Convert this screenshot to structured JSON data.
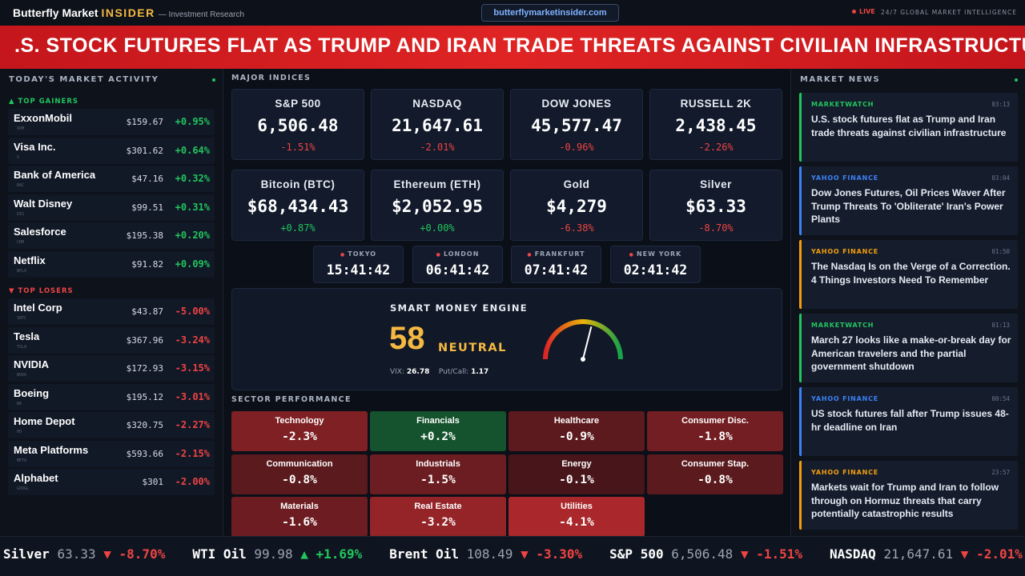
{
  "header": {
    "brand_main": "Butterfly Market ",
    "brand_accent": "INSIDER",
    "brand_sub": "— Investment Research",
    "url": "butterflymarketinsider.com",
    "live_label": "LIVE",
    "tagline": "24/7 GLOBAL MARKET INTELLIGENCE"
  },
  "headline": ".S. STOCK FUTURES FLAT AS TRUMP AND IRAN TRADE THREATS AGAINST CIVILIAN INFRASTRUCTU",
  "market_activity": {
    "title": "TODAY'S MARKET ACTIVITY",
    "gainers_label": "▲ TOP GAINERS",
    "losers_label": "▼ TOP LOSERS",
    "gainers": [
      {
        "name": "ExxonMobil",
        "ticker": "XOM",
        "price": "$159.67",
        "change": "+0.95%"
      },
      {
        "name": "Visa Inc.",
        "ticker": "V",
        "price": "$301.62",
        "change": "+0.64%"
      },
      {
        "name": "Bank of America",
        "ticker": "BAC",
        "price": "$47.16",
        "change": "+0.32%"
      },
      {
        "name": "Walt Disney",
        "ticker": "DIS",
        "price": "$99.51",
        "change": "+0.31%"
      },
      {
        "name": "Salesforce",
        "ticker": "CRM",
        "price": "$195.38",
        "change": "+0.20%"
      },
      {
        "name": "Netflix",
        "ticker": "NFLX",
        "price": "$91.82",
        "change": "+0.09%"
      }
    ],
    "losers": [
      {
        "name": "Intel Corp",
        "ticker": "INTC",
        "price": "$43.87",
        "change": "-5.00%"
      },
      {
        "name": "Tesla",
        "ticker": "TSLA",
        "price": "$367.96",
        "change": "-3.24%"
      },
      {
        "name": "NVIDIA",
        "ticker": "NVDA",
        "price": "$172.93",
        "change": "-3.15%"
      },
      {
        "name": "Boeing",
        "ticker": "BA",
        "price": "$195.12",
        "change": "-3.01%"
      },
      {
        "name": "Home Depot",
        "ticker": "HD",
        "price": "$320.75",
        "change": "-2.27%"
      },
      {
        "name": "Meta Platforms",
        "ticker": "META",
        "price": "$593.66",
        "change": "-2.15%"
      },
      {
        "name": "Alphabet",
        "ticker": "GOOGL",
        "price": "$301",
        "change": "-2.00%"
      }
    ]
  },
  "indices": {
    "title": "MAJOR INDICES",
    "items": [
      {
        "name": "S&P 500",
        "value": "6,506.48",
        "change": "-1.51%",
        "dir": "down"
      },
      {
        "name": "NASDAQ",
        "value": "21,647.61",
        "change": "-2.01%",
        "dir": "down"
      },
      {
        "name": "DOW JONES",
        "value": "45,577.47",
        "change": "-0.96%",
        "dir": "down"
      },
      {
        "name": "RUSSELL 2K",
        "value": "2,438.45",
        "change": "-2.26%",
        "dir": "down"
      },
      {
        "name": "Bitcoin (BTC)",
        "value": "$68,434.43",
        "change": "+0.87%",
        "dir": "up"
      },
      {
        "name": "Ethereum (ETH)",
        "value": "$2,052.95",
        "change": "+0.00%",
        "dir": "up"
      },
      {
        "name": "Gold",
        "value": "$4,279",
        "change": "-6.38%",
        "dir": "down"
      },
      {
        "name": "Silver",
        "value": "$63.33",
        "change": "-8.70%",
        "dir": "down"
      }
    ]
  },
  "clocks": [
    {
      "city": "TOKYO",
      "time": "15:41:42"
    },
    {
      "city": "LONDON",
      "time": "06:41:42"
    },
    {
      "city": "FRANKFURT",
      "time": "07:41:42"
    },
    {
      "city": "NEW YORK",
      "time": "02:41:42"
    }
  ],
  "smart_money": {
    "title": "SMART MONEY ENGINE",
    "score": "58",
    "score_value": 58,
    "label": "NEUTRAL",
    "vix_label": "VIX:",
    "vix": "26.78",
    "putcall_label": "Put/Call:",
    "putcall": "1.17",
    "accent_color": "#f5b942"
  },
  "sectors": {
    "title": "SECTOR PERFORMANCE",
    "items": [
      {
        "name": "Technology",
        "change": "-2.3%",
        "value": -2.3
      },
      {
        "name": "Financials",
        "change": "+0.2%",
        "value": 0.2
      },
      {
        "name": "Healthcare",
        "change": "-0.9%",
        "value": -0.9
      },
      {
        "name": "Consumer Disc.",
        "change": "-1.8%",
        "value": -1.8
      },
      {
        "name": "Communication",
        "change": "-0.8%",
        "value": -0.8
      },
      {
        "name": "Industrials",
        "change": "-1.5%",
        "value": -1.5
      },
      {
        "name": "Energy",
        "change": "-0.1%",
        "value": -0.1
      },
      {
        "name": "Consumer Stap.",
        "change": "-0.8%",
        "value": -0.8
      },
      {
        "name": "Materials",
        "change": "-1.6%",
        "value": -1.6
      },
      {
        "name": "Real Estate",
        "change": "-3.2%",
        "value": -3.2
      },
      {
        "name": "Utilities",
        "change": "-4.1%",
        "value": -4.1
      }
    ]
  },
  "news": {
    "title": "MARKET NEWS",
    "items": [
      {
        "source": "MARKETWATCH",
        "time": "03:13",
        "headline": "U.S. stock futures flat as Trump and Iran trade threats against civilian infrastructure",
        "color": "#22c55e"
      },
      {
        "source": "YAHOO FINANCE",
        "time": "03:04",
        "headline": "Dow Jones Futures, Oil Prices Waver After Trump Threats To 'Obliterate' Iran's Power Plants",
        "color": "#3b82f6"
      },
      {
        "source": "YAHOO FINANCE",
        "time": "01:50",
        "headline": "The Nasdaq Is on the Verge of a Correction. 4 Things Investors Need To Remember",
        "color": "#f59e0b"
      },
      {
        "source": "MARKETWATCH",
        "time": "01:13",
        "headline": "March 27 looks like a make-or-break day for American travelers and the partial government shutdown",
        "color": "#22c55e"
      },
      {
        "source": "YAHOO FINANCE",
        "time": "00:54",
        "headline": "US stock futures fall after Trump issues 48-hr deadline on Iran",
        "color": "#3b82f6"
      },
      {
        "source": "YAHOO FINANCE",
        "time": "23:57",
        "headline": "Markets wait for Trump and Iran to follow through on Hormuz threats that carry potentially catastrophic results",
        "color": "#f59e0b"
      }
    ]
  },
  "ticker": [
    {
      "name": "Silver",
      "value": "63.33",
      "arrow": "▼",
      "change": "-8.70%",
      "dir": "down"
    },
    {
      "name": "WTI Oil",
      "value": "99.98",
      "arrow": "▲",
      "change": "+1.69%",
      "dir": "up"
    },
    {
      "name": "Brent Oil",
      "value": "108.49",
      "arrow": "▼",
      "change": "-3.30%",
      "dir": "down"
    },
    {
      "name": "S&P 500",
      "value": "6,506.48",
      "arrow": "▼",
      "change": "-1.51%",
      "dir": "down"
    },
    {
      "name": "NASDAQ",
      "value": "21,647.61",
      "arrow": "▼",
      "change": "-2.01%",
      "dir": "down"
    }
  ]
}
